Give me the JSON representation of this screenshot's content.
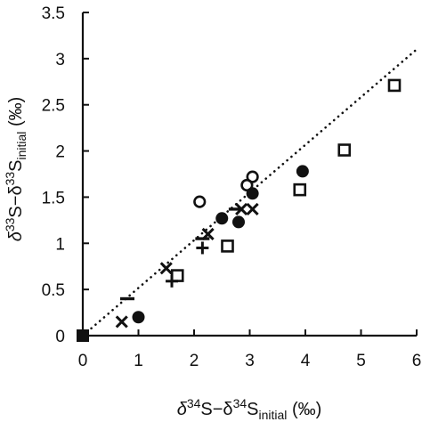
{
  "chart_data": {
    "type": "scatter",
    "title": "",
    "xlabel": {
      "p1": "δ",
      "sup1": "34",
      "p2": "S−δ",
      "sup2": "34",
      "p3": "S",
      "sub": "initial",
      "p4": " (‰)"
    },
    "ylabel": {
      "p1": "δ",
      "sup1": "33",
      "p2": "S−δ",
      "sup2": "33",
      "p3": "S",
      "sub": "initial",
      "p4": " (‰)"
    },
    "xlim": [
      0,
      6
    ],
    "ylim": [
      0,
      3.5
    ],
    "x_ticks": [
      "0",
      "1",
      "2",
      "3",
      "4",
      "5",
      "6"
    ],
    "y_ticks": [
      "0",
      "0.5",
      "1",
      "1.5",
      "2",
      "2.5",
      "3",
      "3.5"
    ],
    "grid": false,
    "reference_line": {
      "style": "dotted",
      "x": [
        0,
        6
      ],
      "y": [
        0,
        3.1
      ]
    },
    "series": [
      {
        "marker": "filled-square",
        "points": [
          [
            0,
            0
          ]
        ]
      },
      {
        "marker": "open-square",
        "points": [
          [
            1.7,
            0.65
          ],
          [
            2.6,
            0.97
          ],
          [
            3.9,
            1.58
          ],
          [
            4.7,
            2.01
          ],
          [
            5.6,
            2.71
          ]
        ]
      },
      {
        "marker": "filled-circle",
        "points": [
          [
            1.0,
            0.2
          ],
          [
            2.5,
            1.27
          ],
          [
            2.8,
            1.23
          ],
          [
            3.05,
            1.54
          ],
          [
            3.95,
            1.78
          ]
        ]
      },
      {
        "marker": "open-circle",
        "points": [
          [
            2.1,
            1.45
          ],
          [
            2.95,
            1.63
          ],
          [
            3.05,
            1.72
          ]
        ]
      },
      {
        "marker": "cross",
        "points": [
          [
            0.7,
            0.15
          ],
          [
            1.5,
            0.73
          ],
          [
            2.25,
            1.1
          ],
          [
            2.85,
            1.37
          ],
          [
            3.05,
            1.37
          ]
        ]
      },
      {
        "marker": "plus",
        "points": [
          [
            1.6,
            0.59
          ],
          [
            2.15,
            0.95
          ]
        ]
      },
      {
        "marker": "dash",
        "points": [
          [
            0.8,
            0.4
          ],
          [
            2.15,
            1.05
          ],
          [
            2.75,
            1.37
          ]
        ]
      }
    ]
  }
}
